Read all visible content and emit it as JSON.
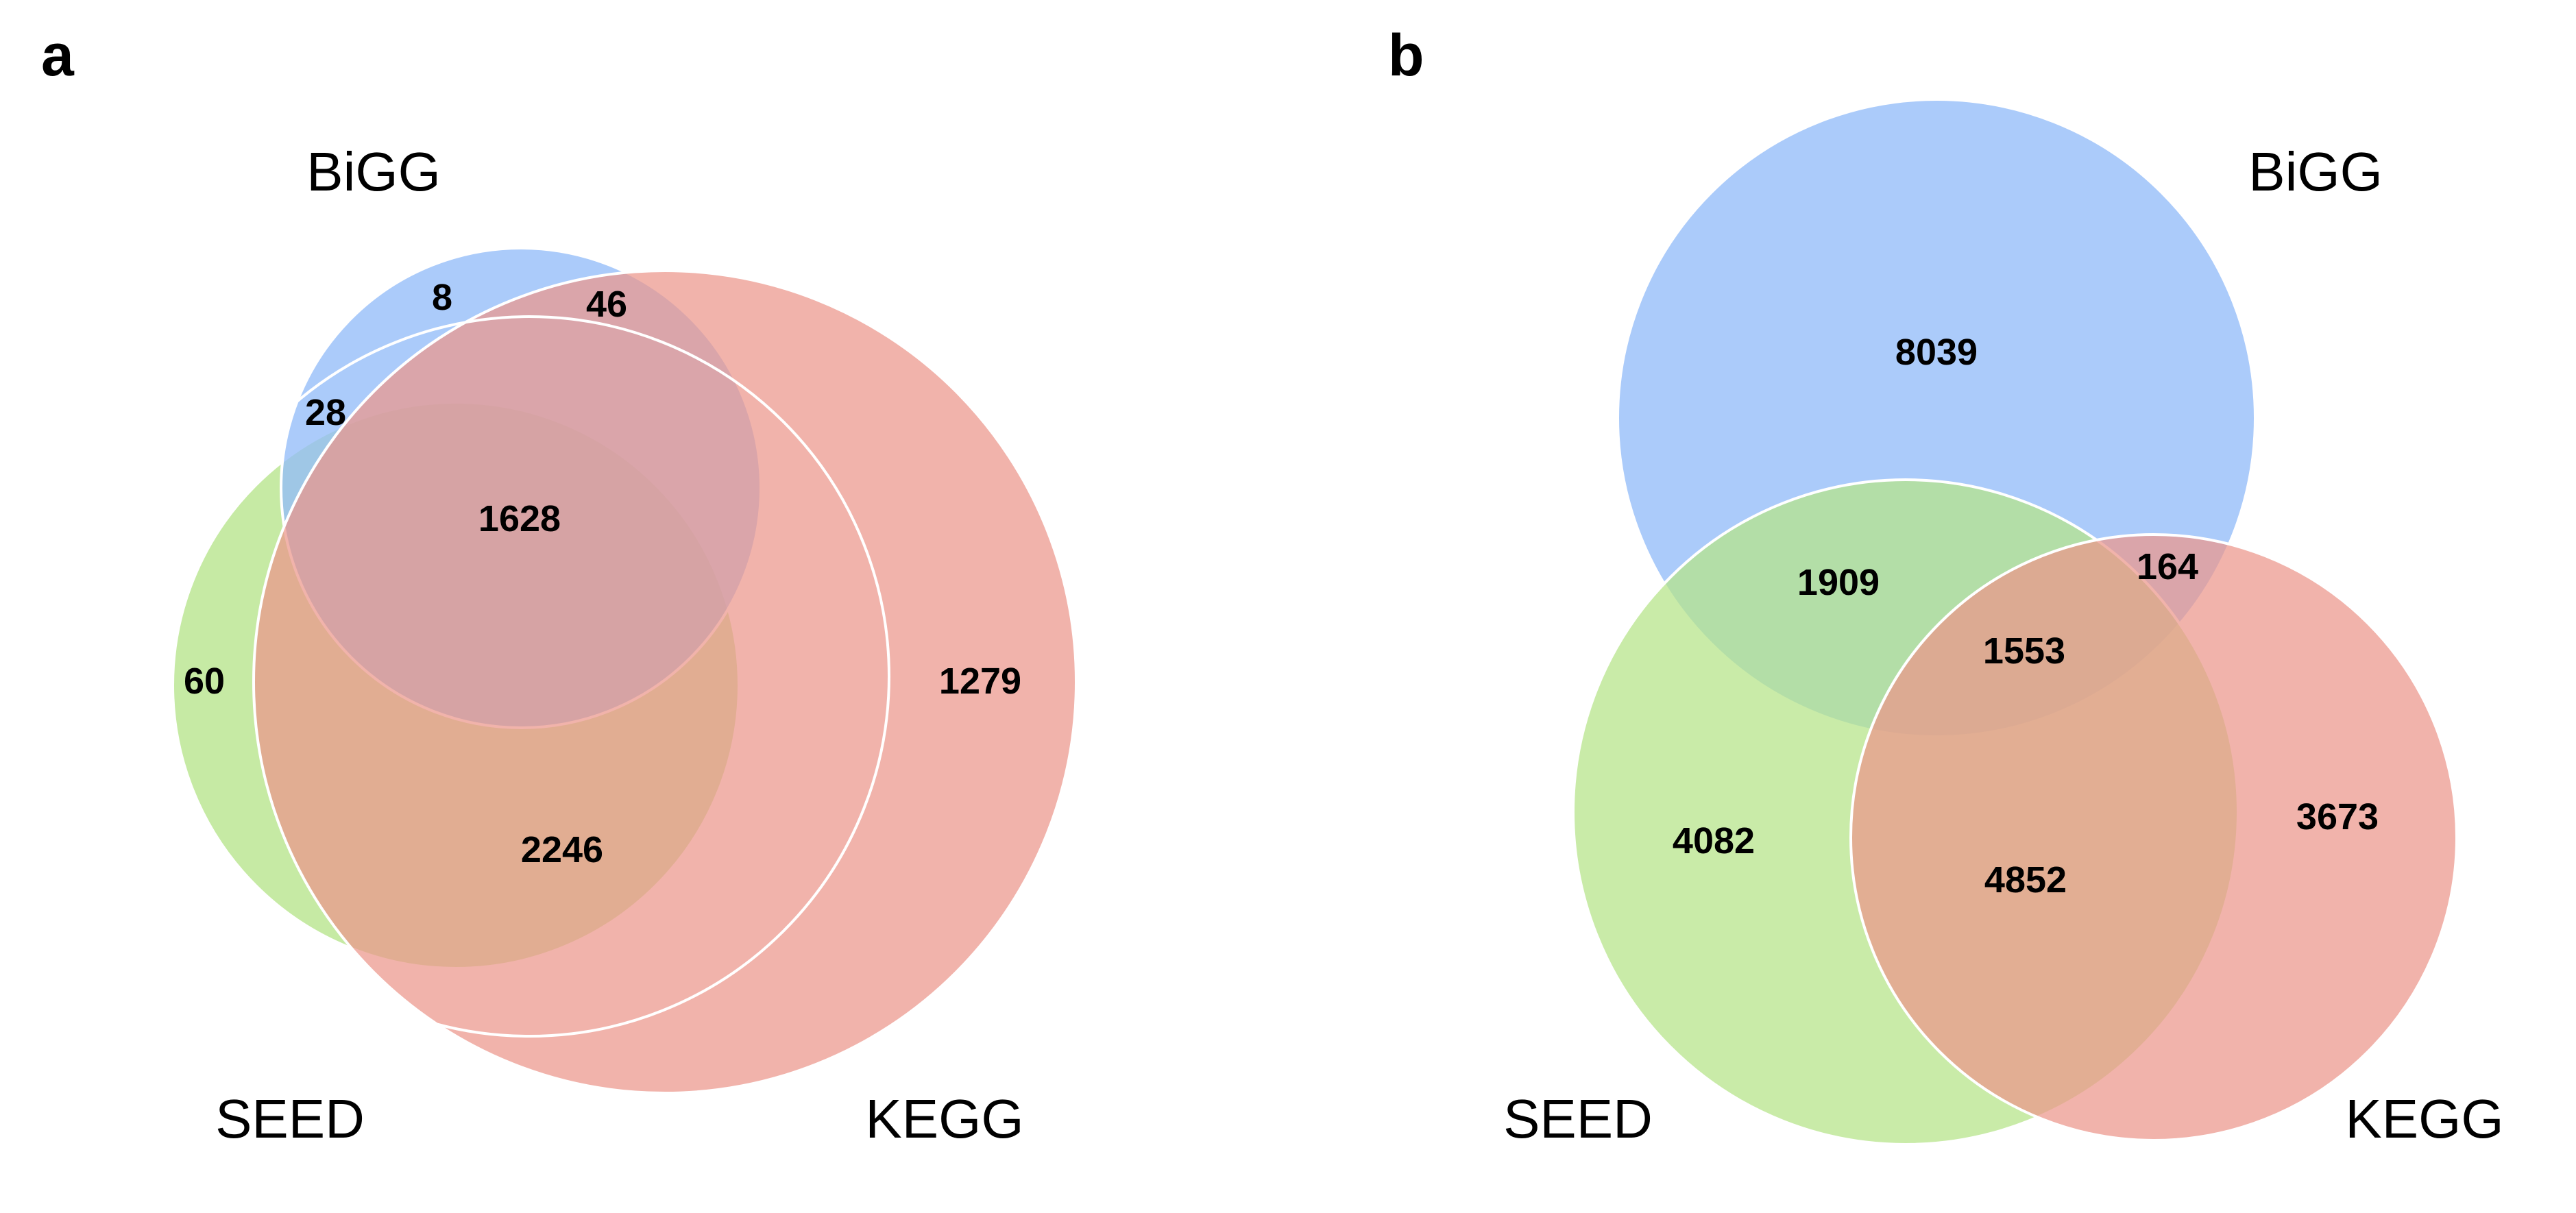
{
  "colors": {
    "bigg": "#93BDF9",
    "seed": "#B6E48A",
    "kegg": "#EB958B"
  },
  "panels": [
    {
      "label": "a",
      "sets": {
        "bigg": "BiGG",
        "seed": "SEED",
        "kegg": "KEGG"
      },
      "counts": {
        "bigg_only": "8",
        "bigg_kegg": "46",
        "bigg_seed": "28",
        "all_three": "1628",
        "seed_only": "60",
        "kegg_only": "1279",
        "seed_kegg": "2246"
      }
    },
    {
      "label": "b",
      "sets": {
        "bigg": "BiGG",
        "seed": "SEED",
        "kegg": "KEGG"
      },
      "counts": {
        "bigg_only": "8039",
        "bigg_seed": "1909",
        "bigg_kegg": "164",
        "all_three": "1553",
        "seed_only": "4082",
        "kegg_only": "3673",
        "seed_kegg": "4852"
      }
    }
  ]
}
